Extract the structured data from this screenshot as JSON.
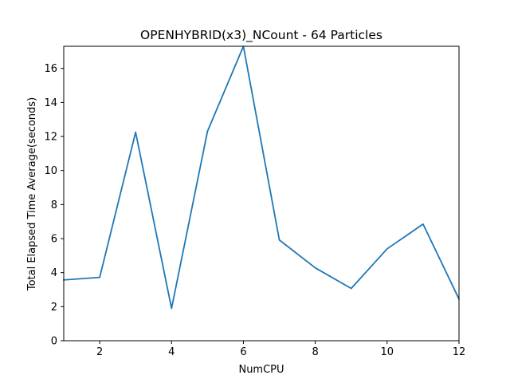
{
  "chart_data": {
    "type": "line",
    "title": "OPENHYBRID(x3)_NCount - 64 Particles",
    "xlabel": "NumCPU",
    "ylabel": "Total Elapsed Time Average(seconds)",
    "xlim": [
      1,
      12
    ],
    "ylim": [
      0,
      17.3
    ],
    "xticks": [
      2,
      4,
      6,
      8,
      10,
      12
    ],
    "yticks": [
      0,
      2,
      4,
      6,
      8,
      10,
      12,
      14,
      16
    ],
    "grid": false,
    "series": [
      {
        "color": "#1f77b4",
        "x": [
          1,
          2,
          3,
          4,
          5,
          6,
          7,
          8,
          9,
          10,
          11,
          12
        ],
        "y": [
          3.57,
          3.72,
          12.25,
          1.9,
          12.3,
          17.3,
          5.92,
          4.28,
          3.07,
          5.4,
          6.85,
          2.45
        ]
      }
    ]
  }
}
